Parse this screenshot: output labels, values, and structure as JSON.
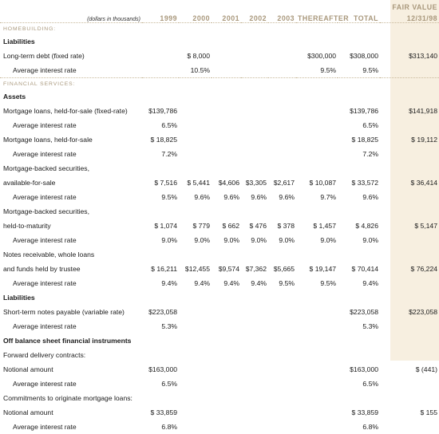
{
  "header": {
    "units": "(dollars in thousands)",
    "columns": [
      "1999",
      "2000",
      "2001",
      "2002",
      "2003",
      "THEREAFTER",
      "TOTAL"
    ],
    "fair_value_label": "FAIR VALUE",
    "fair_value_date": "12/31/98"
  },
  "rows": [
    {
      "type": "section",
      "label": "HOMEBUILDING:"
    },
    {
      "type": "sub",
      "label": "Liabilities"
    },
    {
      "type": "data",
      "label": "Long-term debt (fixed rate)",
      "values": [
        "",
        "$ 8,000",
        "",
        "",
        "",
        "$300,000",
        "$308,000",
        "$313,140"
      ]
    },
    {
      "type": "rate",
      "label": "Average interest rate",
      "values": [
        "",
        "10.5%",
        "",
        "",
        "",
        "9.5%",
        "9.5%",
        ""
      ]
    },
    {
      "type": "section",
      "label": "FINANCIAL SERVICES:"
    },
    {
      "type": "sub",
      "label": "Assets"
    },
    {
      "type": "data",
      "label": "Mortgage loans, held-for-sale (fixed-rate)",
      "values": [
        "$139,786",
        "",
        "",
        "",
        "",
        "",
        "$139,786",
        "$141,918"
      ]
    },
    {
      "type": "rate",
      "label": "Average interest rate",
      "values": [
        "6.5%",
        "",
        "",
        "",
        "",
        "",
        "6.5%",
        ""
      ]
    },
    {
      "type": "data",
      "label": "Mortgage loans, held-for-sale",
      "values": [
        "$ 18,825",
        "",
        "",
        "",
        "",
        "",
        "$ 18,825",
        "$ 19,112"
      ]
    },
    {
      "type": "rate",
      "label": "Average interest rate",
      "values": [
        "7.2%",
        "",
        "",
        "",
        "",
        "",
        "7.2%",
        ""
      ]
    },
    {
      "type": "label",
      "label": "Mortgage-backed securities,"
    },
    {
      "type": "data",
      "label": "available-for-sale",
      "values": [
        "$ 7,516",
        "$ 5,441",
        "$4,606",
        "$3,305",
        "$2,617",
        "$ 10,087",
        "$ 33,572",
        "$ 36,414"
      ]
    },
    {
      "type": "rate",
      "label": "Average interest rate",
      "values": [
        "9.5%",
        "9.6%",
        "9.6%",
        "9.6%",
        "9.6%",
        "9.7%",
        "9.6%",
        ""
      ]
    },
    {
      "type": "label",
      "label": "Mortgage-backed securities,"
    },
    {
      "type": "data",
      "label": "held-to-maturity",
      "values": [
        "$ 1,074",
        "$ 779",
        "$ 662",
        "$ 476",
        "$ 378",
        "$ 1,457",
        "$ 4,826",
        "$ 5,147"
      ]
    },
    {
      "type": "rate",
      "label": "Average interest rate",
      "values": [
        "9.0%",
        "9.0%",
        "9.0%",
        "9.0%",
        "9.0%",
        "9.0%",
        "9.0%",
        ""
      ]
    },
    {
      "type": "label",
      "label": "Notes receivable, whole loans"
    },
    {
      "type": "data",
      "label": "and funds held by trustee",
      "values": [
        "$ 16,211",
        "$12,455",
        "$9,574",
        "$7,362",
        "$5,665",
        "$ 19,147",
        "$ 70,414",
        "$ 76,224"
      ]
    },
    {
      "type": "rate",
      "label": "Average interest rate",
      "values": [
        "9.4%",
        "9.4%",
        "9.4%",
        "9.4%",
        "9.5%",
        "9.5%",
        "9.4%",
        ""
      ]
    },
    {
      "type": "sub",
      "label": "Liabilities"
    },
    {
      "type": "data",
      "label": "Short-term notes payable (variable rate)",
      "values": [
        "$223,058",
        "",
        "",
        "",
        "",
        "",
        "$223,058",
        "$223,058"
      ]
    },
    {
      "type": "rate",
      "label": "Average interest rate",
      "values": [
        "5.3%",
        "",
        "",
        "",
        "",
        "",
        "5.3%",
        ""
      ]
    },
    {
      "type": "sub",
      "label": "Off balance sheet financial instruments"
    },
    {
      "type": "label",
      "label": "Forward delivery contracts:"
    },
    {
      "type": "data",
      "label": "Notional amount",
      "values": [
        "$163,000",
        "",
        "",
        "",
        "",
        "",
        "$163,000",
        "$ (441)"
      ]
    },
    {
      "type": "rate",
      "label": "Average interest rate",
      "values": [
        "6.5%",
        "",
        "",
        "",
        "",
        "",
        "6.5%",
        ""
      ]
    },
    {
      "type": "label",
      "label": "Commitments to originate mortgage loans:"
    },
    {
      "type": "data",
      "label": "Notional amount",
      "values": [
        "$ 33,859",
        "",
        "",
        "",
        "",
        "",
        "$ 33,859",
        "$ 155"
      ]
    },
    {
      "type": "rate",
      "label": "Average interest rate",
      "values": [
        "6.8%",
        "",
        "",
        "",
        "",
        "",
        "6.8%",
        ""
      ]
    }
  ]
}
